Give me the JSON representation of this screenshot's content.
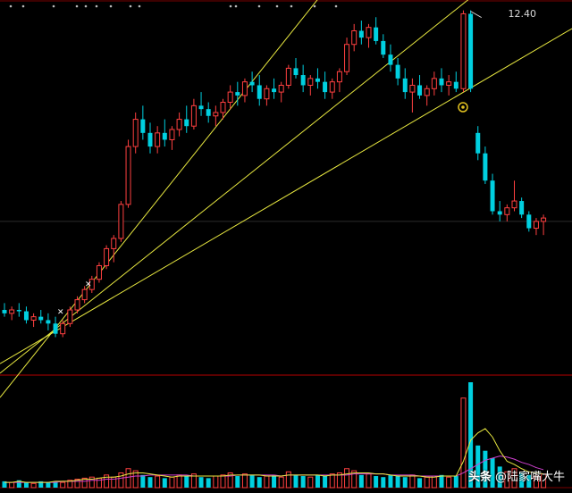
{
  "chart_data": {
    "type": "candlestick",
    "price_high_label": "12.40",
    "high_point": {
      "x": 75,
      "y": 12.4
    },
    "reference_price": 9.3,
    "candles": [
      [
        8.0,
        8.1,
        7.9,
        7.95
      ],
      [
        7.95,
        8.05,
        7.85,
        8.0
      ],
      [
        8.0,
        8.1,
        7.9,
        7.98
      ],
      [
        7.98,
        8.05,
        7.8,
        7.85
      ],
      [
        7.85,
        7.95,
        7.75,
        7.9
      ],
      [
        7.9,
        8.0,
        7.8,
        7.85
      ],
      [
        7.85,
        7.95,
        7.7,
        7.8
      ],
      [
        7.8,
        7.9,
        7.6,
        7.65
      ],
      [
        7.65,
        7.85,
        7.6,
        7.8
      ],
      [
        7.8,
        8.05,
        7.75,
        8.0
      ],
      [
        8.0,
        8.2,
        7.95,
        8.15
      ],
      [
        8.15,
        8.35,
        8.1,
        8.3
      ],
      [
        8.3,
        8.5,
        8.25,
        8.45
      ],
      [
        8.45,
        8.7,
        8.4,
        8.65
      ],
      [
        8.65,
        8.95,
        8.6,
        8.9
      ],
      [
        8.9,
        9.1,
        8.7,
        9.05
      ],
      [
        9.05,
        9.6,
        9.0,
        9.55
      ],
      [
        9.55,
        10.5,
        9.5,
        10.4
      ],
      [
        10.4,
        10.9,
        10.3,
        10.8
      ],
      [
        10.8,
        11.0,
        10.5,
        10.6
      ],
      [
        10.6,
        10.75,
        10.3,
        10.4
      ],
      [
        10.4,
        10.7,
        10.3,
        10.6
      ],
      [
        10.6,
        10.8,
        10.4,
        10.5
      ],
      [
        10.5,
        10.7,
        10.35,
        10.65
      ],
      [
        10.65,
        10.9,
        10.55,
        10.8
      ],
      [
        10.8,
        11.0,
        10.6,
        10.7
      ],
      [
        10.7,
        11.1,
        10.65,
        11.0
      ],
      [
        11.0,
        11.2,
        10.85,
        10.95
      ],
      [
        10.95,
        11.05,
        10.75,
        10.85
      ],
      [
        10.85,
        11.0,
        10.7,
        10.9
      ],
      [
        10.9,
        11.1,
        10.8,
        11.05
      ],
      [
        11.05,
        11.3,
        10.95,
        11.2
      ],
      [
        11.2,
        11.35,
        11.0,
        11.15
      ],
      [
        11.15,
        11.4,
        11.05,
        11.35
      ],
      [
        11.35,
        11.5,
        11.2,
        11.3
      ],
      [
        11.3,
        11.45,
        11.0,
        11.1
      ],
      [
        11.1,
        11.3,
        11.0,
        11.25
      ],
      [
        11.25,
        11.4,
        11.1,
        11.2
      ],
      [
        11.2,
        11.35,
        11.05,
        11.3
      ],
      [
        11.3,
        11.6,
        11.25,
        11.55
      ],
      [
        11.55,
        11.7,
        11.4,
        11.45
      ],
      [
        11.45,
        11.6,
        11.2,
        11.3
      ],
      [
        11.3,
        11.45,
        11.15,
        11.4
      ],
      [
        11.4,
        11.55,
        11.25,
        11.35
      ],
      [
        11.35,
        11.5,
        11.1,
        11.2
      ],
      [
        11.2,
        11.4,
        11.1,
        11.35
      ],
      [
        11.35,
        11.55,
        11.2,
        11.5
      ],
      [
        11.5,
        12.0,
        11.45,
        11.9
      ],
      [
        11.9,
        12.2,
        11.8,
        12.1
      ],
      [
        12.1,
        12.25,
        11.9,
        12.0
      ],
      [
        12.0,
        12.2,
        11.85,
        12.15
      ],
      [
        12.15,
        12.3,
        11.9,
        11.95
      ],
      [
        11.95,
        12.05,
        11.7,
        11.75
      ],
      [
        11.75,
        11.9,
        11.5,
        11.6
      ],
      [
        11.6,
        11.7,
        11.3,
        11.4
      ],
      [
        11.4,
        11.55,
        11.1,
        11.2
      ],
      [
        11.2,
        11.4,
        10.9,
        11.3
      ],
      [
        11.3,
        11.45,
        11.1,
        11.15
      ],
      [
        11.15,
        11.3,
        11.0,
        11.25
      ],
      [
        11.25,
        11.5,
        11.15,
        11.4
      ],
      [
        11.4,
        11.55,
        11.2,
        11.3
      ],
      [
        11.3,
        11.45,
        11.15,
        11.35
      ],
      [
        11.35,
        11.5,
        11.2,
        11.25
      ],
      [
        11.25,
        12.4,
        11.2,
        12.35
      ],
      [
        12.35,
        12.4,
        11.2,
        11.25
      ],
      [
        10.6,
        10.7,
        10.2,
        10.3
      ],
      [
        10.3,
        10.4,
        9.85,
        9.9
      ],
      [
        9.9,
        10.0,
        9.4,
        9.45
      ],
      [
        9.45,
        9.6,
        9.3,
        9.4
      ],
      [
        9.4,
        9.55,
        9.3,
        9.5
      ],
      [
        9.5,
        9.9,
        9.45,
        9.6
      ],
      [
        9.6,
        9.65,
        9.35,
        9.4
      ],
      [
        9.4,
        9.45,
        9.15,
        9.2
      ],
      [
        9.2,
        9.35,
        9.1,
        9.3
      ],
      [
        9.3,
        9.4,
        9.1,
        9.35
      ]
    ],
    "volume": [
      6,
      5,
      7,
      5,
      4,
      6,
      5,
      6,
      5,
      7,
      8,
      9,
      10,
      9,
      12,
      10,
      14,
      18,
      16,
      12,
      10,
      11,
      9,
      10,
      12,
      11,
      13,
      10,
      9,
      11,
      12,
      14,
      11,
      13,
      12,
      10,
      11,
      12,
      10,
      15,
      12,
      11,
      10,
      12,
      11,
      13,
      14,
      18,
      16,
      12,
      13,
      11,
      10,
      12,
      11,
      10,
      12,
      9,
      10,
      11,
      12,
      10,
      11,
      85,
      100,
      40,
      35,
      28,
      20,
      15,
      18,
      14,
      12,
      11,
      13
    ],
    "volume_ma_short": [
      5,
      5,
      6,
      5,
      5,
      5,
      5,
      6,
      6,
      6,
      7,
      8,
      8,
      9,
      10,
      10,
      11,
      13,
      14,
      14,
      13,
      12,
      11,
      10,
      11,
      11,
      11,
      11,
      11,
      11,
      11,
      12,
      12,
      12,
      12,
      12,
      11,
      11,
      11,
      12,
      12,
      12,
      12,
      12,
      11,
      12,
      12,
      13,
      14,
      14,
      14,
      13,
      13,
      12,
      11,
      11,
      11,
      11,
      10,
      10,
      11,
      11,
      11,
      25,
      45,
      52,
      56,
      48,
      35,
      25,
      22,
      18,
      15,
      14,
      13
    ],
    "volume_ma_long": [
      5,
      5,
      5,
      5,
      5,
      5,
      5,
      5,
      6,
      6,
      6,
      6,
      7,
      7,
      8,
      8,
      9,
      10,
      11,
      11,
      12,
      12,
      12,
      12,
      12,
      12,
      11,
      11,
      11,
      11,
      11,
      11,
      12,
      12,
      12,
      12,
      12,
      12,
      11,
      12,
      12,
      12,
      12,
      12,
      12,
      12,
      12,
      12,
      13,
      13,
      13,
      13,
      13,
      12,
      12,
      12,
      12,
      11,
      11,
      11,
      11,
      11,
      11,
      14,
      18,
      22,
      26,
      28,
      30,
      29,
      27,
      24,
      22,
      19,
      17
    ],
    "trendlines": [
      {
        "from": [
          6,
          7.6
        ],
        "to": [
          50,
          13.5
        ]
      },
      {
        "from": [
          5,
          7.55
        ],
        "to": [
          63,
          12.5
        ]
      },
      {
        "from": [
          4,
          7.5
        ],
        "to": [
          75,
          11.95
        ]
      }
    ],
    "colors": {
      "up": "#ff4040",
      "down": "#00d0e0",
      "trend": "#e8e840",
      "ma_short": "#e8e840",
      "ma_long": "#d040d0",
      "grid": "#7a0000"
    }
  },
  "watermark": {
    "source": "头条",
    "handle": "@陆家嘴大牛"
  }
}
